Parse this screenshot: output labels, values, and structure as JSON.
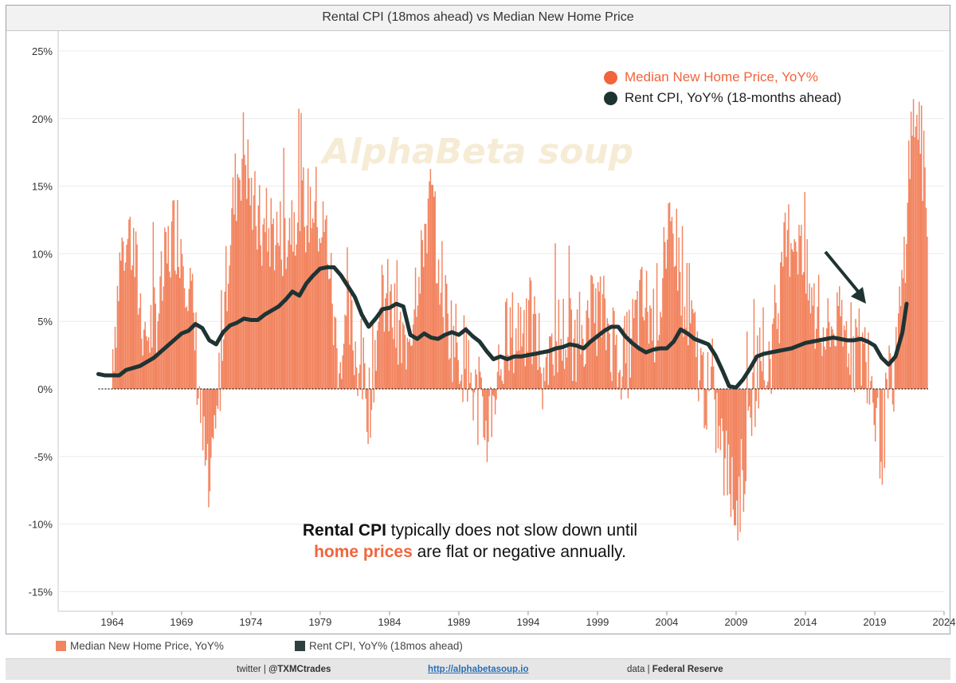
{
  "title": "Rental CPI (18mos ahead) vs Median New Home Price",
  "colors": {
    "bars": "#f2845f",
    "line": "#1f3333",
    "accent": "#f2643c",
    "zero": "#222222"
  },
  "chart_legend": {
    "home": "Median New Home Price, YoY%",
    "rent": "Rent CPI, YoY% (18-months ahead)"
  },
  "annotation": {
    "line1_bold": "Rental CPI",
    "line1_rest": " typically does not slow down until",
    "line2_accent": "home prices",
    "line2_rest": " are flat or negative annually."
  },
  "bottom_legend": {
    "home": "Median New Home Price, YoY%",
    "rent": "Rent CPI, YoY% (18mos ahead)"
  },
  "footer": {
    "twitter_label": "twitter | ",
    "twitter_handle": "@TXMCtrades",
    "site": "http://alphabetasoup.io",
    "data_label": "data | ",
    "data_source": "Federal Reserve"
  },
  "watermark": "AlphaBeta soup",
  "chart_data": {
    "type": "bar+line",
    "title": "Rental CPI (18mos ahead) vs Median New Home Price",
    "xlabel": "",
    "ylabel": "",
    "x_range": [
      1960.1,
      2024
    ],
    "ylim": [
      -16,
      25
    ],
    "x_ticks": [
      1964,
      1969,
      1974,
      1979,
      1984,
      1989,
      1994,
      1999,
      2004,
      2009,
      2014,
      2019,
      2024
    ],
    "y_ticks": [
      -15,
      -10,
      -5,
      0,
      5,
      10,
      15,
      20,
      25
    ],
    "y_tick_labels": [
      "-15%",
      "-10%",
      "-5%",
      "0%",
      "5%",
      "10%",
      "15%",
      "20%",
      "25%"
    ],
    "series": [
      {
        "name": "Median New Home Price, YoY%",
        "kind": "bar",
        "envelope": [
          [
            1964.0,
            3
          ],
          [
            1964.5,
            9
          ],
          [
            1965.0,
            12
          ],
          [
            1965.5,
            10
          ],
          [
            1966.0,
            6
          ],
          [
            1966.5,
            4
          ],
          [
            1967.0,
            5
          ],
          [
            1967.5,
            7
          ],
          [
            1968.0,
            10
          ],
          [
            1968.5,
            12
          ],
          [
            1969.0,
            11
          ],
          [
            1969.5,
            8
          ],
          [
            1970.0,
            3
          ],
          [
            1970.5,
            -4
          ],
          [
            1971.0,
            -9
          ],
          [
            1971.5,
            -3
          ],
          [
            1972.0,
            6
          ],
          [
            1972.5,
            12
          ],
          [
            1973.0,
            16
          ],
          [
            1973.5,
            18
          ],
          [
            1974.0,
            14
          ],
          [
            1974.5,
            12
          ],
          [
            1975.0,
            11
          ],
          [
            1975.5,
            12
          ],
          [
            1976.0,
            11
          ],
          [
            1976.5,
            12
          ],
          [
            1977.0,
            13
          ],
          [
            1977.5,
            14
          ],
          [
            1978.0,
            13
          ],
          [
            1978.5,
            14
          ],
          [
            1979.0,
            12
          ],
          [
            1979.5,
            11
          ],
          [
            1980.0,
            4
          ],
          [
            1980.5,
            2
          ],
          [
            1981.0,
            5
          ],
          [
            1981.5,
            3
          ],
          [
            1982.0,
            1
          ],
          [
            1982.5,
            -1
          ],
          [
            1983.0,
            4
          ],
          [
            1983.5,
            7
          ],
          [
            1984.0,
            6
          ],
          [
            1984.5,
            4
          ],
          [
            1985.0,
            3
          ],
          [
            1985.5,
            5
          ],
          [
            1986.0,
            9
          ],
          [
            1986.5,
            12
          ],
          [
            1987.0,
            14
          ],
          [
            1987.5,
            10
          ],
          [
            1988.0,
            6
          ],
          [
            1988.5,
            4
          ],
          [
            1989.0,
            3
          ],
          [
            1989.5,
            2
          ],
          [
            1990.0,
            0
          ],
          [
            1990.5,
            -2
          ],
          [
            1991.0,
            -3
          ],
          [
            1991.5,
            0
          ],
          [
            1992.0,
            2
          ],
          [
            1992.5,
            4
          ],
          [
            1993.0,
            4
          ],
          [
            1993.5,
            5
          ],
          [
            1994.0,
            5
          ],
          [
            1994.5,
            4
          ],
          [
            1995.0,
            2
          ],
          [
            1995.5,
            3
          ],
          [
            1996.0,
            4
          ],
          [
            1996.5,
            4
          ],
          [
            1997.0,
            4
          ],
          [
            1997.5,
            4
          ],
          [
            1998.0,
            5
          ],
          [
            1998.5,
            5
          ],
          [
            1999.0,
            6
          ],
          [
            1999.5,
            5
          ],
          [
            2000.0,
            4
          ],
          [
            2000.5,
            3
          ],
          [
            2001.0,
            2
          ],
          [
            2001.5,
            4
          ],
          [
            2002.0,
            6
          ],
          [
            2002.5,
            6
          ],
          [
            2003.0,
            5
          ],
          [
            2003.5,
            7
          ],
          [
            2004.0,
            10
          ],
          [
            2004.5,
            12
          ],
          [
            2005.0,
            8
          ],
          [
            2005.5,
            6
          ],
          [
            2006.0,
            3
          ],
          [
            2006.5,
            1
          ],
          [
            2007.0,
            -1
          ],
          [
            2007.5,
            -2
          ],
          [
            2008.0,
            -5
          ],
          [
            2008.5,
            -7
          ],
          [
            2009.0,
            -9
          ],
          [
            2009.5,
            -6
          ],
          [
            2010.0,
            -2
          ],
          [
            2010.5,
            2
          ],
          [
            2011.0,
            1
          ],
          [
            2011.5,
            3
          ],
          [
            2012.0,
            6
          ],
          [
            2012.5,
            10
          ],
          [
            2013.0,
            12
          ],
          [
            2013.5,
            11
          ],
          [
            2014.0,
            8
          ],
          [
            2014.5,
            6
          ],
          [
            2015.0,
            4
          ],
          [
            2015.5,
            4
          ],
          [
            2016.0,
            5
          ],
          [
            2016.5,
            4
          ],
          [
            2017.0,
            4
          ],
          [
            2017.5,
            3
          ],
          [
            2018.0,
            3
          ],
          [
            2018.5,
            2
          ],
          [
            2019.0,
            -2
          ],
          [
            2019.5,
            -4
          ],
          [
            2020.0,
            0
          ],
          [
            2020.5,
            2
          ],
          [
            2021.0,
            8
          ],
          [
            2021.5,
            18
          ],
          [
            2022.0,
            21
          ],
          [
            2022.5,
            16
          ],
          [
            2022.8,
            10
          ]
        ]
      },
      {
        "name": "Rent CPI, YoY% (18-months ahead)",
        "kind": "line",
        "points": [
          [
            1963.0,
            1.1
          ],
          [
            1963.5,
            1.0
          ],
          [
            1964.0,
            1.0
          ],
          [
            1964.5,
            1.0
          ],
          [
            1965.0,
            1.4
          ],
          [
            1966.0,
            1.7
          ],
          [
            1967.0,
            2.3
          ],
          [
            1968.0,
            3.2
          ],
          [
            1969.0,
            4.1
          ],
          [
            1969.5,
            4.3
          ],
          [
            1970.0,
            4.8
          ],
          [
            1970.5,
            4.5
          ],
          [
            1971.0,
            3.6
          ],
          [
            1971.5,
            3.3
          ],
          [
            1972.0,
            4.2
          ],
          [
            1972.5,
            4.7
          ],
          [
            1973.0,
            4.9
          ],
          [
            1973.5,
            5.2
          ],
          [
            1974.0,
            5.1
          ],
          [
            1974.5,
            5.1
          ],
          [
            1975.0,
            5.5
          ],
          [
            1975.5,
            5.8
          ],
          [
            1976.0,
            6.1
          ],
          [
            1976.5,
            6.6
          ],
          [
            1977.0,
            7.2
          ],
          [
            1977.5,
            6.9
          ],
          [
            1978.0,
            7.8
          ],
          [
            1978.5,
            8.4
          ],
          [
            1979.0,
            8.9
          ],
          [
            1979.5,
            9.0
          ],
          [
            1980.0,
            9.0
          ],
          [
            1980.5,
            8.4
          ],
          [
            1981.0,
            7.6
          ],
          [
            1981.5,
            6.8
          ],
          [
            1982.0,
            5.5
          ],
          [
            1982.5,
            4.6
          ],
          [
            1983.0,
            5.2
          ],
          [
            1983.5,
            5.9
          ],
          [
            1984.0,
            6.0
          ],
          [
            1984.5,
            6.3
          ],
          [
            1985.0,
            6.1
          ],
          [
            1985.5,
            4.0
          ],
          [
            1986.0,
            3.7
          ],
          [
            1986.5,
            4.1
          ],
          [
            1987.0,
            3.8
          ],
          [
            1987.5,
            3.7
          ],
          [
            1988.0,
            4.0
          ],
          [
            1988.5,
            4.2
          ],
          [
            1989.0,
            4.0
          ],
          [
            1989.5,
            4.4
          ],
          [
            1990.0,
            3.9
          ],
          [
            1990.5,
            3.5
          ],
          [
            1991.0,
            2.8
          ],
          [
            1991.5,
            2.2
          ],
          [
            1992.0,
            2.4
          ],
          [
            1992.5,
            2.2
          ],
          [
            1993.0,
            2.4
          ],
          [
            1993.5,
            2.4
          ],
          [
            1994.0,
            2.5
          ],
          [
            1994.5,
            2.6
          ],
          [
            1995.0,
            2.7
          ],
          [
            1995.5,
            2.8
          ],
          [
            1996.0,
            3.0
          ],
          [
            1996.5,
            3.1
          ],
          [
            1997.0,
            3.3
          ],
          [
            1997.5,
            3.2
          ],
          [
            1998.0,
            3.0
          ],
          [
            1998.5,
            3.5
          ],
          [
            1999.0,
            3.9
          ],
          [
            1999.5,
            4.3
          ],
          [
            2000.0,
            4.6
          ],
          [
            2000.5,
            4.6
          ],
          [
            2001.0,
            3.9
          ],
          [
            2001.5,
            3.4
          ],
          [
            2002.0,
            3.0
          ],
          [
            2002.5,
            2.7
          ],
          [
            2003.0,
            2.9
          ],
          [
            2003.5,
            3.0
          ],
          [
            2004.0,
            3.0
          ],
          [
            2004.5,
            3.5
          ],
          [
            2005.0,
            4.4
          ],
          [
            2005.5,
            4.1
          ],
          [
            2006.0,
            3.7
          ],
          [
            2006.5,
            3.5
          ],
          [
            2007.0,
            3.3
          ],
          [
            2007.5,
            2.5
          ],
          [
            2008.0,
            1.4
          ],
          [
            2008.5,
            0.2
          ],
          [
            2009.0,
            0.1
          ],
          [
            2009.5,
            0.7
          ],
          [
            2010.0,
            1.5
          ],
          [
            2010.5,
            2.4
          ],
          [
            2011.0,
            2.6
          ],
          [
            2011.5,
            2.7
          ],
          [
            2012.0,
            2.8
          ],
          [
            2012.5,
            2.9
          ],
          [
            2013.0,
            3.0
          ],
          [
            2013.5,
            3.2
          ],
          [
            2014.0,
            3.4
          ],
          [
            2014.5,
            3.5
          ],
          [
            2015.0,
            3.6
          ],
          [
            2015.5,
            3.7
          ],
          [
            2016.0,
            3.8
          ],
          [
            2016.5,
            3.7
          ],
          [
            2017.0,
            3.6
          ],
          [
            2017.5,
            3.6
          ],
          [
            2018.0,
            3.7
          ],
          [
            2018.5,
            3.5
          ],
          [
            2019.0,
            3.2
          ],
          [
            2019.5,
            2.3
          ],
          [
            2020.0,
            1.8
          ],
          [
            2020.5,
            2.4
          ],
          [
            2021.0,
            4.2
          ],
          [
            2021.3,
            6.3
          ]
        ]
      }
    ]
  }
}
